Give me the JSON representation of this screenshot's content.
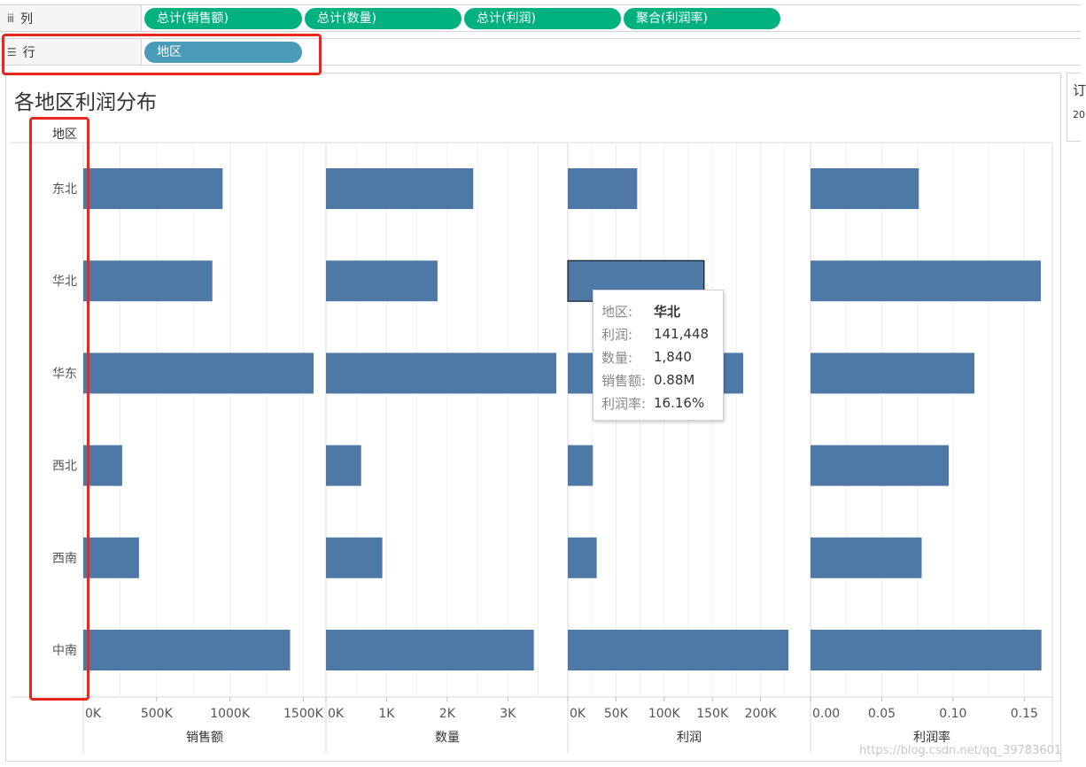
{
  "shelves": {
    "columns": {
      "label": "列",
      "icon": "columns-icon",
      "pills": [
        "总计(销售额)",
        "总计(数量)",
        "总计(利润)",
        "聚合(利润率)"
      ]
    },
    "rows": {
      "label": "行",
      "icon": "rows-icon",
      "pills": [
        "地区"
      ]
    }
  },
  "side_panel": {
    "title": "订",
    "value": "20"
  },
  "watermark": "https://blog.csdn.net/qq_39783601",
  "tooltip": {
    "rows": [
      {
        "key": "地区:",
        "value": "华北"
      },
      {
        "key": "利润:",
        "value": "141,448"
      },
      {
        "key": "数量:",
        "value": "1,840"
      },
      {
        "key": "销售额:",
        "value": "0.88M"
      },
      {
        "key": "利润率:",
        "value": "16.16%"
      }
    ]
  },
  "colors": {
    "bar": "#4e79a7",
    "green_pill": "#00b180",
    "blue_pill": "#4a9bb8",
    "highlight_box": "#e8271f"
  },
  "chart_data": {
    "type": "bar",
    "title": "各地区利润分布",
    "row_header": "地区",
    "categories": [
      "东北",
      "华北",
      "华东",
      "西北",
      "西南",
      "中南"
    ],
    "highlighted_category": "华北",
    "panels": [
      {
        "name": "销售额",
        "values": [
          950000,
          880000,
          1570000,
          265000,
          380000,
          1410000
        ],
        "ticks": [
          0,
          500000,
          1000000,
          1500000
        ],
        "tick_labels": [
          "0K",
          "500K",
          "1000K",
          "1500K"
        ],
        "xlim": [
          0,
          1570000
        ]
      },
      {
        "name": "数量",
        "values": [
          2430,
          1840,
          3800,
          580,
          930,
          3430
        ],
        "ticks": [
          0,
          1000,
          2000,
          3000
        ],
        "tick_labels": [
          "0K",
          "1K",
          "2K",
          "3K"
        ],
        "xlim": [
          0,
          3800
        ]
      },
      {
        "name": "利润",
        "values": [
          72000,
          141448,
          182000,
          26000,
          30000,
          229000
        ],
        "ticks": [
          0,
          50000,
          100000,
          150000,
          200000
        ],
        "tick_labels": [
          "0K",
          "50K",
          "100K",
          "150K",
          "200K"
        ],
        "xlim": [
          0,
          239000
        ]
      },
      {
        "name": "利润率",
        "values": [
          0.076,
          0.1616,
          0.115,
          0.097,
          0.078,
          0.162
        ],
        "ticks": [
          0,
          0.05,
          0.1,
          0.15
        ],
        "tick_labels": [
          "0.00",
          "0.05",
          "0.10",
          "0.15"
        ],
        "xlim": [
          0,
          0.1616
        ]
      }
    ],
    "grid": true,
    "legend": "none"
  }
}
